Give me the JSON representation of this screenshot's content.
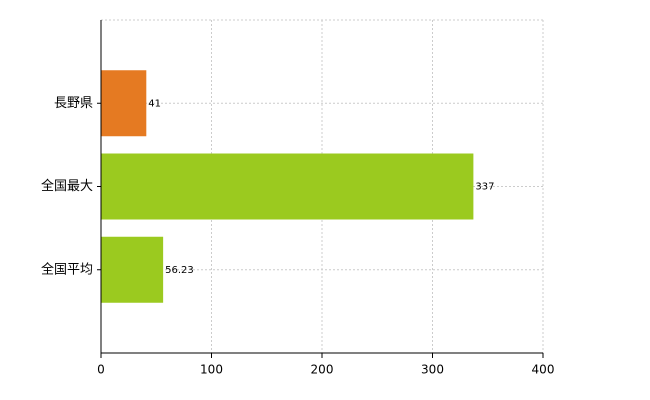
{
  "chart_data": {
    "type": "hbar",
    "categories": [
      "長野県",
      "全国最大",
      "全国平均"
    ],
    "values": [
      41,
      337,
      56.23
    ],
    "colors": [
      "#e57a22",
      "#9bca1f"
    ],
    "color_index": [
      0,
      1,
      1
    ],
    "xlim": [
      0,
      400
    ],
    "xticks": [
      0,
      100,
      200,
      300,
      400
    ],
    "grid": true
  }
}
